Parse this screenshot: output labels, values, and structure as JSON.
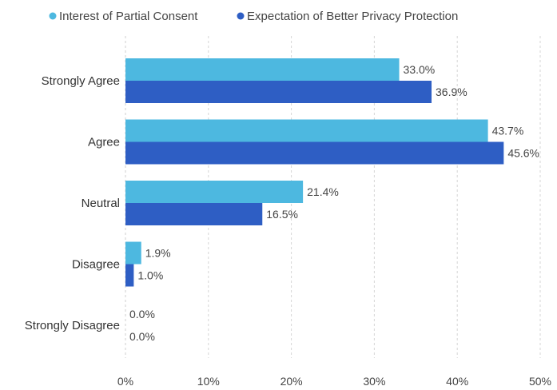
{
  "chart_data": {
    "type": "bar",
    "orientation": "horizontal",
    "categories": [
      "Strongly Agree",
      "Agree",
      "Neutral",
      "Disagree",
      "Strongly Disagree"
    ],
    "series": [
      {
        "name": "Interest of Partial Consent",
        "color": "#4DB8E0",
        "values": [
          33.0,
          43.7,
          21.4,
          1.9,
          0.0
        ],
        "labels": [
          "33.0%",
          "43.7%",
          "21.4%",
          "1.9%",
          "0.0%"
        ]
      },
      {
        "name": "Expectation of Better Privacy Protection",
        "color": "#2E5EC4",
        "values": [
          36.9,
          45.6,
          16.5,
          1.0,
          0.0
        ],
        "labels": [
          "36.9%",
          "45.6%",
          "16.5%",
          "1.0%",
          "0.0%"
        ]
      }
    ],
    "x_ticks": [
      "0%",
      "10%",
      "20%",
      "30%",
      "40%",
      "50%"
    ],
    "xlim": [
      0,
      50
    ],
    "grid": "vertical dashed",
    "legend_position": "top-left"
  }
}
